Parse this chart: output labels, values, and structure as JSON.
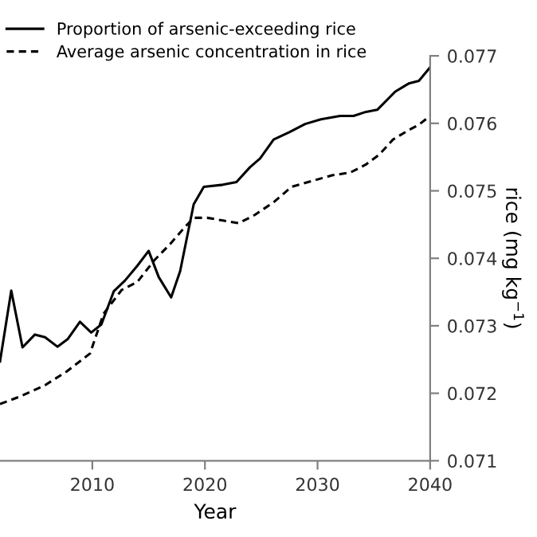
{
  "chart_data": {
    "type": "line",
    "xlabel": "Year",
    "ylabel": "rice (mg kg$^{−1}$)",
    "xlim": [
      2001.8,
      2040
    ],
    "xticks": [
      2010,
      2020,
      2030,
      2040
    ],
    "ylim": [
      0.071,
      0.077
    ],
    "yticks": [
      0.071,
      0.072,
      0.073,
      0.074,
      0.075,
      0.076,
      0.077
    ],
    "legend": "top left",
    "grid": false,
    "series": [
      {
        "name": "Proportion of arsenic-exceeding rice",
        "color": "#000000",
        "line_style": "solid",
        "x": [
          2001.8,
          2002.8,
          2003.8,
          2004.9,
          2005.8,
          2006.9,
          2007.8,
          2008.9,
          2009.9,
          2010.8,
          2011.9,
          2012.9,
          2014.0,
          2015.0,
          2015.9,
          2017.0,
          2017.8,
          2019.0,
          2019.9,
          2021.6,
          2022.8,
          2024.0,
          2024.9,
          2026.1,
          2027.5,
          2028.9,
          2030.3,
          2032.0,
          2033.2,
          2034.3,
          2035.3,
          2036.9,
          2038.1,
          2039.0,
          2040
        ],
        "values": [
          0.07247,
          0.07352,
          0.07268,
          0.07287,
          0.07283,
          0.07269,
          0.0728,
          0.07306,
          0.0729,
          0.07302,
          0.07351,
          0.07367,
          0.07389,
          0.07411,
          0.07372,
          0.07342,
          0.07381,
          0.0748,
          0.07506,
          0.07509,
          0.07513,
          0.07535,
          0.07548,
          0.07576,
          0.07587,
          0.07599,
          0.07606,
          0.07611,
          0.07611,
          0.07617,
          0.0762,
          0.07647,
          0.07659,
          0.07663,
          0.07683
        ]
      },
      {
        "name": "Average arsenic concentration in rice",
        "color": "#000000",
        "line_style": "dashed",
        "x": [
          2001.8,
          2003.7,
          2005.8,
          2007.7,
          2009.8,
          2011.0,
          2012.6,
          2014.0,
          2015.5,
          2016.9,
          2018.1,
          2019.0,
          2020.2,
          2021.6,
          2023.0,
          2024.4,
          2026.1,
          2027.7,
          2029.6,
          2031.3,
          2032.9,
          2034.3,
          2035.5,
          2036.7,
          2038.1,
          2039.0,
          2040
        ],
        "values": [
          0.07184,
          0.07196,
          0.07212,
          0.07232,
          0.07259,
          0.07318,
          0.07353,
          0.07365,
          0.07397,
          0.07421,
          0.07444,
          0.0746,
          0.0746,
          0.07456,
          0.07452,
          0.07464,
          0.07483,
          0.07506,
          0.07515,
          0.07523,
          0.07527,
          0.07539,
          0.07554,
          0.07576,
          0.0759,
          0.07598,
          0.07611
        ]
      }
    ]
  }
}
